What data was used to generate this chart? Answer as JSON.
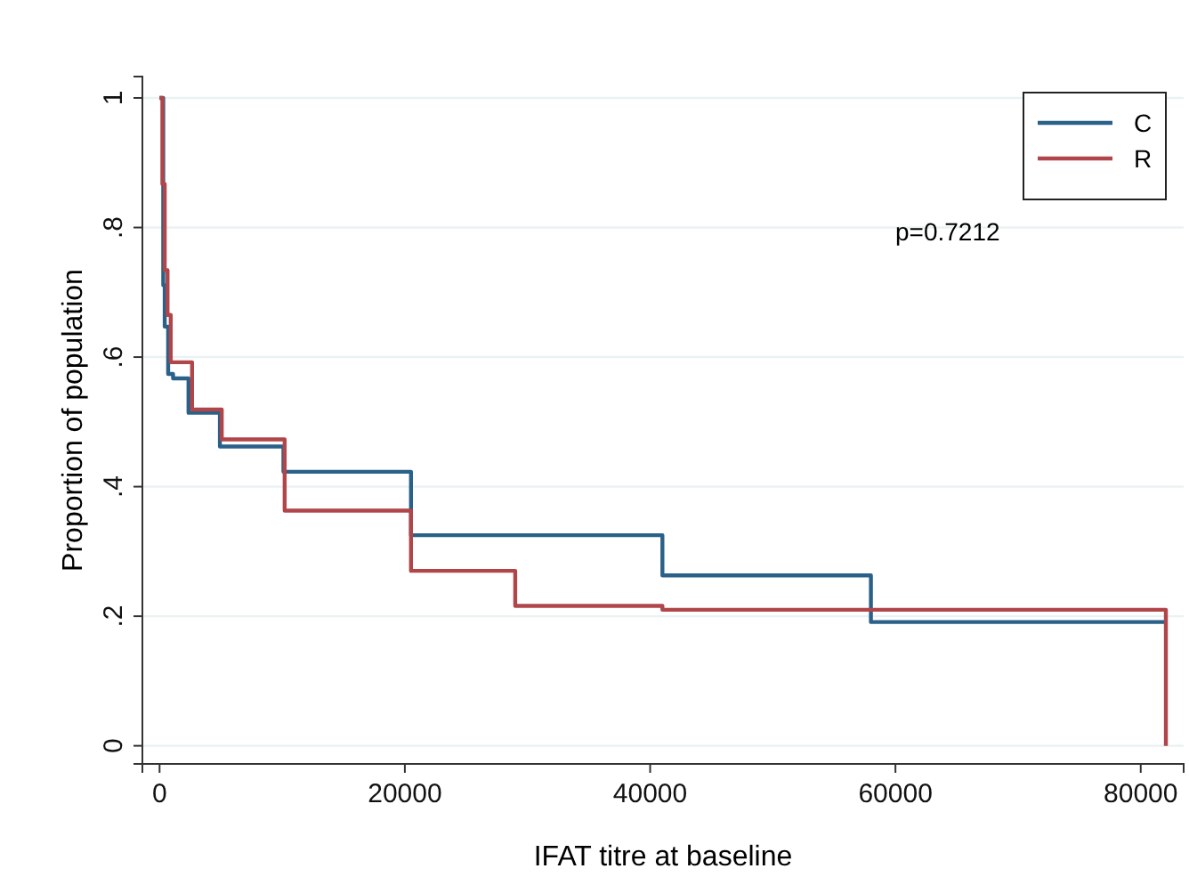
{
  "chart_data": {
    "type": "step",
    "xlabel": "IFAT titre at baseline",
    "ylabel": "Proportion of population",
    "annotations": [
      "p=0.7212"
    ],
    "series": [
      {
        "name": "C",
        "color": "#2a6188",
        "x": [
          0,
          300,
          420,
          700,
          1100,
          2360,
          4920,
          10100,
          20500,
          41000,
          58000,
          82050
        ],
        "values": [
          1,
          0.711,
          0.647,
          0.574,
          0.567,
          0.514,
          0.462,
          0.423,
          0.325,
          0.263,
          0.191,
          0.191
        ]
      },
      {
        "name": "R",
        "color": "#b0464a",
        "x": [
          0,
          230,
          420,
          650,
          910,
          2650,
          5070,
          10200,
          20500,
          29000,
          41000,
          82050
        ],
        "values": [
          1,
          0.867,
          0.734,
          0.665,
          0.592,
          0.519,
          0.473,
          0.363,
          0.27,
          0.216,
          0.21,
          0
        ]
      }
    ],
    "xlim": [
      -1400,
      83500
    ],
    "ylim": [
      -0.028,
      1.033
    ],
    "xticks": [
      0,
      20000,
      40000,
      60000,
      80000
    ],
    "yticks": [
      0,
      {
        "value": 0.2,
        "label": ".2"
      },
      {
        "value": 0.4,
        "label": ".4"
      },
      {
        "value": 0.6,
        "label": ".6"
      },
      {
        "value": 0.8,
        "label": ".8"
      },
      1
    ],
    "grid": "y",
    "legend": "top right",
    "line_style": "solid",
    "marker": "none"
  }
}
